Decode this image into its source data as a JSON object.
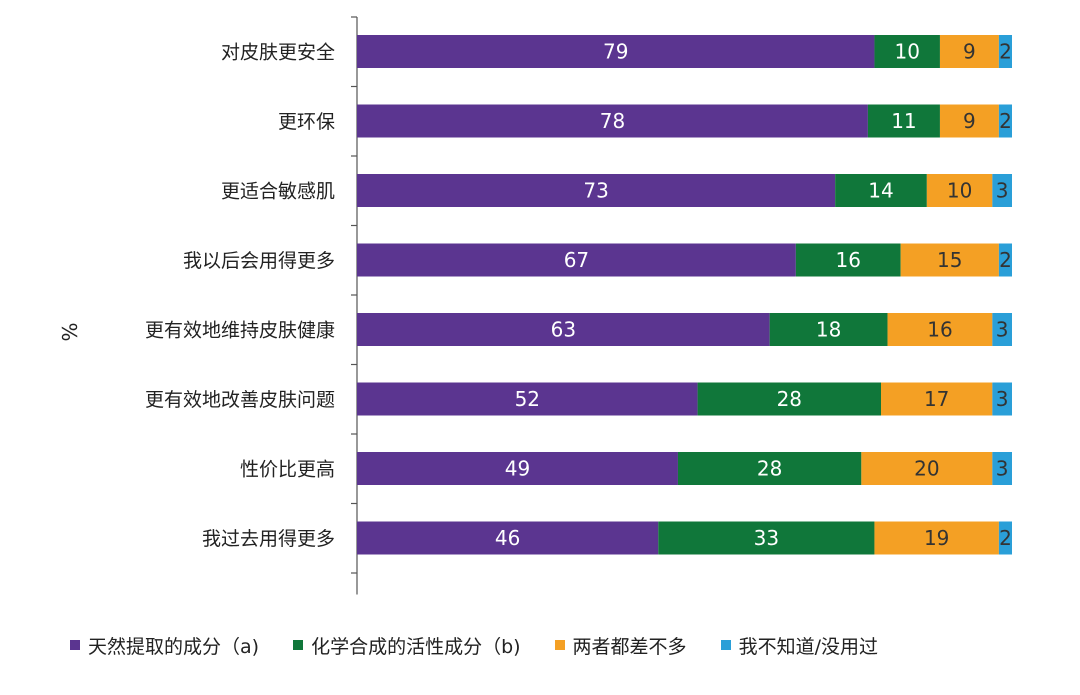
{
  "chart_data": {
    "type": "bar",
    "orientation": "horizontal",
    "stacked": true,
    "unit_label": "%",
    "categories": [
      "对皮肤更安全",
      "更环保",
      "更适合敏感肌",
      "我以后会用得更多",
      "更有效地维持皮肤健康",
      "更有效地改善皮肤问题",
      "性价比更高",
      "我过去用得更多"
    ],
    "series": [
      {
        "name": "天然提取的成分（a)",
        "color": "#5b3590",
        "values": [
          79,
          78,
          73,
          67,
          63,
          52,
          49,
          46
        ]
      },
      {
        "name": "化学合成的活性成分（b)",
        "color": "#10773a",
        "values": [
          10,
          11,
          14,
          16,
          18,
          28,
          28,
          33
        ]
      },
      {
        "name": "两者都差不多",
        "color": "#f4a024",
        "values": [
          9,
          9,
          10,
          15,
          16,
          17,
          20,
          19
        ]
      },
      {
        "name": "我不知道/没用过",
        "color": "#2a9fd8",
        "values": [
          2,
          2,
          3,
          2,
          3,
          3,
          3,
          2
        ]
      }
    ],
    "xlim": [
      0,
      100
    ],
    "grid": false,
    "legend_position": "bottom"
  }
}
